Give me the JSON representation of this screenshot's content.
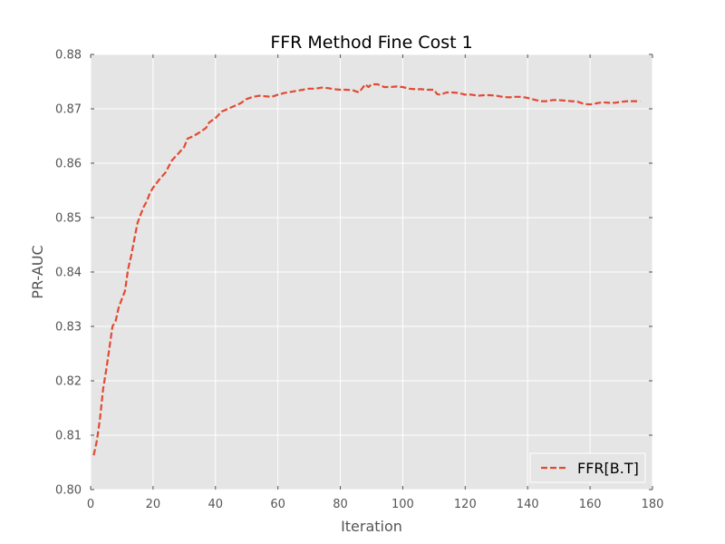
{
  "chart_data": {
    "type": "line",
    "title": "FFR Method Fine Cost 1",
    "xlabel": "Iteration",
    "ylabel": "PR-AUC",
    "xlim": [
      0,
      180
    ],
    "ylim": [
      0.8,
      0.88
    ],
    "xticks": [
      0,
      20,
      40,
      60,
      80,
      100,
      120,
      140,
      160,
      180
    ],
    "yticks": [
      0.8,
      0.81,
      0.82,
      0.83,
      0.84,
      0.85,
      0.86,
      0.87,
      0.88
    ],
    "xtick_labels": [
      "0",
      "20",
      "40",
      "60",
      "80",
      "100",
      "120",
      "140",
      "160",
      "180"
    ],
    "ytick_labels": [
      "0.80",
      "0.81",
      "0.82",
      "0.83",
      "0.84",
      "0.85",
      "0.86",
      "0.87",
      "0.88"
    ],
    "grid": true,
    "legend_position": "lower-right",
    "colors": {
      "background": "#e5e5e5",
      "grid": "#ffffff",
      "series": "#e24a33"
    },
    "series": [
      {
        "name": "FFR[B.T]",
        "style": "dashed",
        "x": [
          1,
          2,
          3,
          4,
          5,
          6,
          7,
          8,
          9,
          10,
          11,
          12,
          13,
          14,
          15,
          16,
          17,
          18,
          19,
          20,
          22,
          24,
          26,
          28,
          30,
          31,
          33,
          35,
          37,
          38,
          40,
          42,
          44,
          46,
          48,
          50,
          52,
          54,
          56,
          58,
          60,
          62,
          64,
          66,
          68,
          70,
          72,
          74,
          76,
          78,
          80,
          82,
          84,
          86,
          88,
          89,
          90,
          92,
          94,
          96,
          98,
          100,
          102,
          104,
          106,
          108,
          110,
          111,
          112,
          114,
          116,
          118,
          120,
          122,
          124,
          126,
          128,
          130,
          132,
          134,
          136,
          138,
          140,
          142,
          144,
          146,
          148,
          150,
          152,
          154,
          156,
          158,
          160,
          162,
          164,
          166,
          168,
          170,
          172,
          174,
          176
        ],
        "y": [
          0.8063,
          0.809,
          0.813,
          0.8185,
          0.822,
          0.826,
          0.83,
          0.831,
          0.8335,
          0.835,
          0.8365,
          0.8405,
          0.843,
          0.846,
          0.849,
          0.8505,
          0.852,
          0.853,
          0.8545,
          0.8555,
          0.857,
          0.8583,
          0.8605,
          0.8617,
          0.863,
          0.8645,
          0.865,
          0.8657,
          0.8665,
          0.8675,
          0.8683,
          0.8695,
          0.87,
          0.8705,
          0.871,
          0.8718,
          0.8722,
          0.8724,
          0.8723,
          0.8722,
          0.8726,
          0.8729,
          0.8731,
          0.8733,
          0.8735,
          0.8737,
          0.8737,
          0.8739,
          0.8738,
          0.8736,
          0.8735,
          0.8735,
          0.8734,
          0.873,
          0.8745,
          0.874,
          0.8745,
          0.8745,
          0.874,
          0.874,
          0.8741,
          0.874,
          0.8737,
          0.8736,
          0.8736,
          0.8735,
          0.8735,
          0.8727,
          0.8726,
          0.873,
          0.873,
          0.8729,
          0.8726,
          0.8726,
          0.8724,
          0.8725,
          0.8725,
          0.8724,
          0.8722,
          0.8721,
          0.8722,
          0.8722,
          0.872,
          0.8717,
          0.8714,
          0.8714,
          0.8716,
          0.8716,
          0.8715,
          0.8714,
          0.8713,
          0.8709,
          0.8708,
          0.871,
          0.8712,
          0.8711,
          0.8711,
          0.8713,
          0.8714,
          0.8714,
          0.8714
        ]
      }
    ]
  }
}
